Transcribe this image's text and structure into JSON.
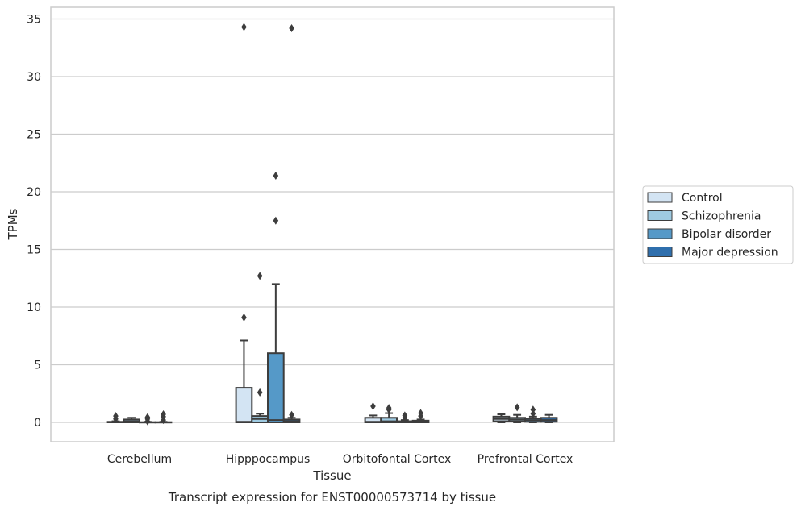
{
  "chart_data": {
    "type": "box",
    "title": "Transcript expression for ENST00000573714 by tissue",
    "xlabel": "Tissue",
    "ylabel": "TPMs",
    "ylim": [
      -1.7,
      36
    ],
    "yticks": [
      0,
      5,
      10,
      15,
      20,
      25,
      30,
      35
    ],
    "grid": "horizontal",
    "legend_position": "right",
    "categories": [
      "Cerebellum",
      "Hipppocampus",
      "Orbitofontal Cortex",
      "Prefrontal Cortex"
    ],
    "series": [
      {
        "name": "Control",
        "color": "#d3e4f3",
        "boxes": [
          {
            "whislo": 0,
            "q1": 0,
            "med": 0,
            "q3": 0.05,
            "whishi": 0.1,
            "fliers": [
              0.3,
              0.55
            ]
          },
          {
            "whislo": 0,
            "q1": 0,
            "med": 0.05,
            "q3": 3.0,
            "whishi": 7.1,
            "fliers": [
              9.1,
              34.3
            ]
          },
          {
            "whislo": 0,
            "q1": 0,
            "med": 0.05,
            "q3": 0.4,
            "whishi": 0.6,
            "fliers": [
              1.4
            ]
          },
          {
            "whislo": 0,
            "q1": 0.1,
            "med": 0.3,
            "q3": 0.5,
            "whishi": 0.7,
            "fliers": []
          }
        ]
      },
      {
        "name": "Schizophrenia",
        "color": "#9ecae1",
        "boxes": [
          {
            "whislo": 0,
            "q1": 0,
            "med": 0.1,
            "q3": 0.25,
            "whishi": 0.4,
            "fliers": []
          },
          {
            "whislo": 0,
            "q1": 0,
            "med": 0.3,
            "q3": 0.55,
            "whishi": 0.75,
            "fliers": [
              2.6,
              12.7
            ]
          },
          {
            "whislo": 0,
            "q1": 0,
            "med": 0.1,
            "q3": 0.4,
            "whishi": 0.8,
            "fliers": [
              1.1,
              1.25
            ]
          },
          {
            "whislo": 0,
            "q1": 0.1,
            "med": 0.25,
            "q3": 0.4,
            "whishi": 0.65,
            "fliers": [
              1.3
            ]
          }
        ]
      },
      {
        "name": "Bipolar disorder",
        "color": "#5599c8",
        "boxes": [
          {
            "whislo": 0,
            "q1": 0,
            "med": 0,
            "q3": 0.02,
            "whishi": 0.05,
            "fliers": [
              0.1,
              0.3,
              0.45
            ]
          },
          {
            "whislo": 0,
            "q1": 0,
            "med": 0.2,
            "q3": 6.0,
            "whishi": 12.0,
            "fliers": [
              17.5,
              21.4
            ]
          },
          {
            "whislo": 0,
            "q1": 0,
            "med": 0,
            "q3": 0.1,
            "whishi": 0.2,
            "fliers": [
              0.4,
              0.6
            ]
          },
          {
            "whislo": 0,
            "q1": 0.05,
            "med": 0.2,
            "q3": 0.35,
            "whishi": 0.5,
            "fliers": [
              0.75,
              1.1
            ]
          }
        ]
      },
      {
        "name": "Major depression",
        "color": "#2f6fad",
        "boxes": [
          {
            "whislo": 0,
            "q1": 0,
            "med": 0,
            "q3": 0.02,
            "whishi": 0.05,
            "fliers": [
              0.2,
              0.5,
              0.7
            ]
          },
          {
            "whislo": 0,
            "q1": 0,
            "med": 0.1,
            "q3": 0.25,
            "whishi": 0.4,
            "fliers": [
              0.65,
              34.2
            ]
          },
          {
            "whislo": 0,
            "q1": 0,
            "med": 0.05,
            "q3": 0.15,
            "whishi": 0.25,
            "fliers": [
              0.55,
              0.8
            ]
          },
          {
            "whislo": 0,
            "q1": 0.05,
            "med": 0.2,
            "q3": 0.4,
            "whishi": 0.65,
            "fliers": []
          }
        ]
      }
    ]
  }
}
